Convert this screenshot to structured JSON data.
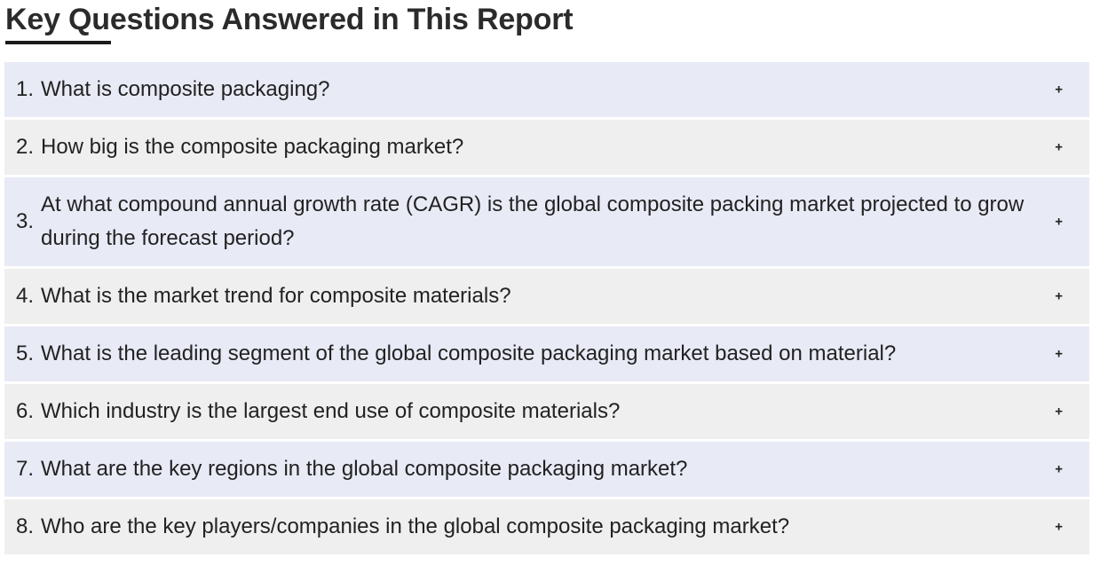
{
  "section": {
    "title": "Key Questions Answered in This Report"
  },
  "faq": {
    "toggle_symbol": "+",
    "items": [
      {
        "number": "1.",
        "question": "What is composite packaging?"
      },
      {
        "number": "2.",
        "question": "How big is the composite packaging market?"
      },
      {
        "number": "3.",
        "question": "At what compound annual growth rate (CAGR) is the global composite packing market projected to grow during the forecast period?"
      },
      {
        "number": "4.",
        "question": "What is the market trend for composite materials?"
      },
      {
        "number": "5.",
        "question": "What is the leading segment of the global composite packaging market based on material?"
      },
      {
        "number": "6.",
        "question": "Which industry is the largest end use of composite materials?"
      },
      {
        "number": "7.",
        "question": "What are the key regions in the global composite packaging market?"
      },
      {
        "number": "8.",
        "question": "Who are the key players/companies in the global composite packaging market?"
      }
    ]
  },
  "colors": {
    "row_alt_a": "#e8eaf6",
    "row_alt_b": "#efefef",
    "heading_underline": "#1a1a1a"
  }
}
